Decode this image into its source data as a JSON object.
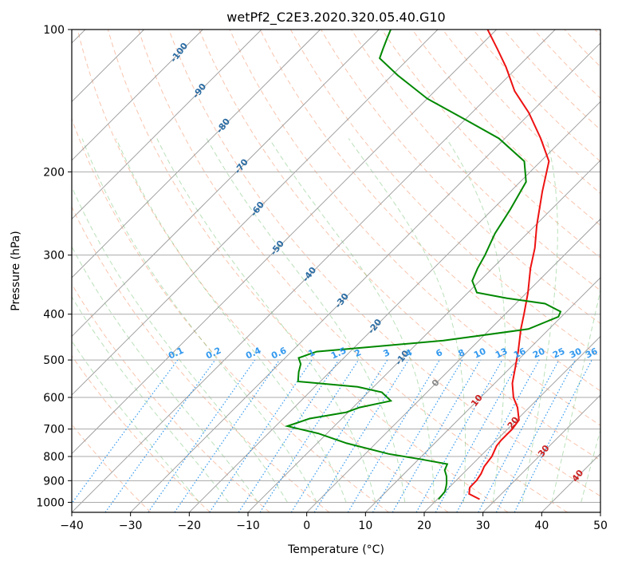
{
  "chart_data": {
    "type": "line",
    "title": "wetPf2_C2E3.2020.320.05.40.G10",
    "xlabel": "Temperature (°C)",
    "ylabel": "Pressure (hPa)",
    "xlim": [
      -40,
      50
    ],
    "ylim": [
      1050,
      100
    ],
    "y_scale": "log",
    "grid": true,
    "x_ticks": [
      -40,
      -30,
      -20,
      -10,
      0,
      10,
      20,
      30,
      40,
      50
    ],
    "y_ticks": [
      100,
      200,
      300,
      400,
      500,
      600,
      700,
      800,
      900,
      1000
    ],
    "isotherm_labels": [
      -100,
      -90,
      -80,
      -70,
      -60,
      -50,
      -40,
      -30,
      -20,
      -10,
      0,
      10,
      20,
      30,
      40
    ],
    "mixing_ratio_labels": [
      "0.1",
      "0.2",
      "0.4",
      "0.6",
      "1",
      "1.5",
      "2",
      "3",
      "4",
      "6",
      "8",
      "10",
      "13",
      "16",
      "20",
      "25",
      "30",
      "36"
    ],
    "series": [
      {
        "color": "#ee1111",
        "points": [
          [
            27.2,
            985
          ],
          [
            24.5,
            960
          ],
          [
            23.5,
            930
          ],
          [
            23.5,
            900
          ],
          [
            23.1,
            870
          ],
          [
            22.4,
            840
          ],
          [
            22.0,
            800
          ],
          [
            21.0,
            760
          ],
          [
            20.8,
            740
          ],
          [
            20.8,
            700
          ],
          [
            20.4,
            670
          ],
          [
            18.0,
            630
          ],
          [
            15.6,
            600
          ],
          [
            13.0,
            560
          ],
          [
            10.9,
            520
          ],
          [
            8.6,
            480
          ],
          [
            5.2,
            430
          ],
          [
            3.2,
            400
          ],
          [
            0.2,
            360
          ],
          [
            -3.5,
            320
          ],
          [
            -6.2,
            290
          ],
          [
            -9.7,
            260
          ],
          [
            -14.6,
            220
          ],
          [
            -18.6,
            190
          ],
          [
            -23.9,
            170
          ],
          [
            -30.3,
            150
          ],
          [
            -36.4,
            135
          ],
          [
            -42.0,
            120
          ],
          [
            -46.5,
            110
          ],
          [
            -51.5,
            100
          ]
        ]
      },
      {
        "color": "#008800",
        "points": [
          [
            20.2,
            985
          ],
          [
            20.0,
            950
          ],
          [
            19.3,
            925
          ],
          [
            18.8,
            910
          ],
          [
            17.6,
            880
          ],
          [
            16.3,
            855
          ],
          [
            15.7,
            830
          ],
          [
            10.1,
            810
          ],
          [
            4.0,
            790
          ],
          [
            -5.0,
            750
          ],
          [
            -11.5,
            715
          ],
          [
            -18.0,
            690
          ],
          [
            -15.5,
            665
          ],
          [
            -10.3,
            645
          ],
          [
            -8.9,
            630
          ],
          [
            -4.7,
            610
          ],
          [
            -7.7,
            585
          ],
          [
            -12.7,
            570
          ],
          [
            -23.8,
            555
          ],
          [
            -25.3,
            530
          ],
          [
            -26.3,
            510
          ],
          [
            -27.7,
            495
          ],
          [
            -25.7,
            480
          ],
          [
            -18.0,
            470
          ],
          [
            -6.0,
            455
          ],
          [
            6.5,
            430
          ],
          [
            9.5,
            405
          ],
          [
            9.0,
            395
          ],
          [
            5.0,
            380
          ],
          [
            -2.5,
            370
          ],
          [
            -8.5,
            360
          ],
          [
            -11.3,
            340
          ],
          [
            -12.5,
            320
          ],
          [
            -13.5,
            300
          ],
          [
            -15.5,
            270
          ],
          [
            -17.0,
            240
          ],
          [
            -19.0,
            210
          ],
          [
            -22.8,
            190
          ],
          [
            -31.0,
            170
          ],
          [
            -40.0,
            155
          ],
          [
            -50.0,
            140
          ],
          [
            -59.0,
            125
          ],
          [
            -65.0,
            115
          ],
          [
            -66.0,
            110
          ],
          [
            -67.0,
            105
          ],
          [
            -68.0,
            100
          ]
        ]
      }
    ]
  }
}
